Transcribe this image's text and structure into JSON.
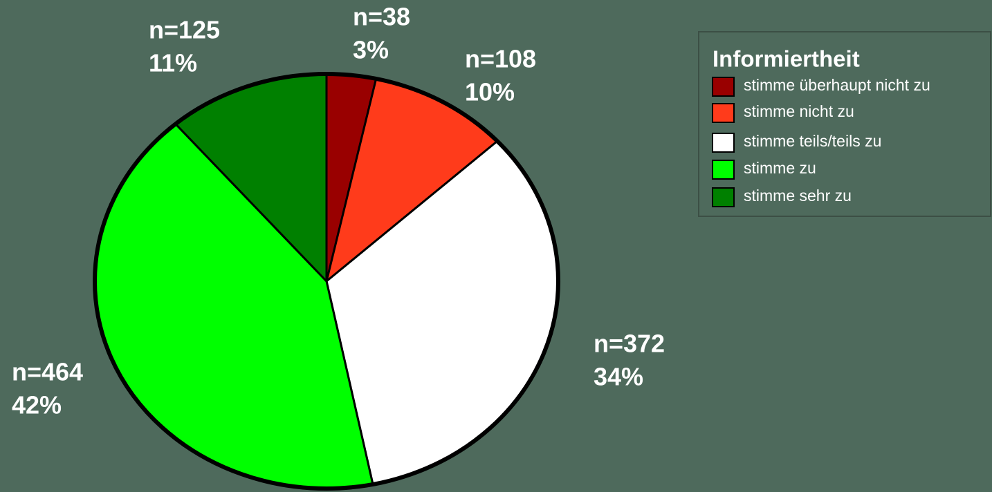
{
  "chart_data": {
    "type": "pie",
    "legend_title": "Informiertheit",
    "categories": [
      "stimme überhaupt nicht zu",
      "stimme nicht zu",
      "stimme teils/teils zu",
      "stimme zu",
      "stimme sehr zu"
    ],
    "values": [
      38,
      108,
      372,
      464,
      125
    ],
    "value_labels": [
      "n=38",
      "n=108",
      "n=372",
      "n=464",
      "n=125"
    ],
    "percentages": [
      3,
      10,
      34,
      42,
      11
    ],
    "percentage_labels": [
      "3%",
      "10%",
      "34%",
      "42%",
      "11%"
    ],
    "colors": [
      "#990000",
      "#ff3b1b",
      "#ffffff",
      "#00ff00",
      "#008000"
    ],
    "legend": "top-right"
  }
}
